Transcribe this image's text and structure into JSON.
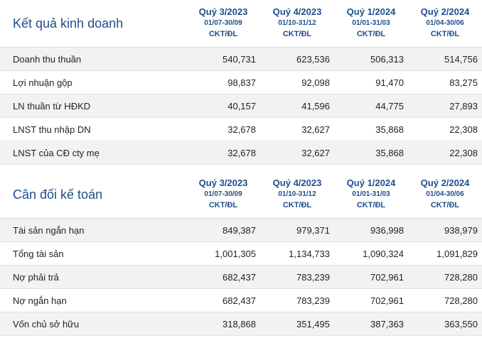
{
  "columns": [
    {
      "quarter": "Quý 3/2023",
      "range": "01/07-30/09",
      "unit": "CKT/ĐL"
    },
    {
      "quarter": "Quý 4/2023",
      "range": "01/10-31/12",
      "unit": "CKT/ĐL"
    },
    {
      "quarter": "Quý 1/2024",
      "range": "01/01-31/03",
      "unit": "CKT/ĐL"
    },
    {
      "quarter": "Quý 2/2024",
      "range": "01/04-30/06",
      "unit": "CKT/ĐL"
    }
  ],
  "business": {
    "title": "Kết quả kinh doanh",
    "rows": [
      {
        "label": "Doanh thu thuần",
        "values": [
          "540,731",
          "623,536",
          "506,313",
          "514,756"
        ]
      },
      {
        "label": "Lợi nhuận gộp",
        "values": [
          "98,837",
          "92,098",
          "91,470",
          "83,275"
        ]
      },
      {
        "label": "LN thuần từ HĐKD",
        "values": [
          "40,157",
          "41,596",
          "44,775",
          "27,893"
        ]
      },
      {
        "label": "LNST thu nhập DN",
        "values": [
          "32,678",
          "32,627",
          "35,868",
          "22,308"
        ]
      },
      {
        "label": "LNST của CĐ cty mẹ",
        "values": [
          "32,678",
          "32,627",
          "35,868",
          "22,308"
        ]
      }
    ]
  },
  "balance": {
    "title": "Cân đối kế toán",
    "rows": [
      {
        "label": "Tài sản ngắn hạn",
        "values": [
          "849,387",
          "979,371",
          "936,998",
          "938,979"
        ]
      },
      {
        "label": "Tổng tài sản",
        "values": [
          "1,001,305",
          "1,134,733",
          "1,090,324",
          "1,091,829"
        ]
      },
      {
        "label": "Nợ phải trả",
        "values": [
          "682,437",
          "783,239",
          "702,961",
          "728,280"
        ]
      },
      {
        "label": "Nợ ngắn hạn",
        "values": [
          "682,437",
          "783,239",
          "702,961",
          "728,280"
        ]
      },
      {
        "label": "Vốn chủ sở hữu",
        "values": [
          "318,868",
          "351,495",
          "387,363",
          "363,550"
        ]
      }
    ]
  }
}
